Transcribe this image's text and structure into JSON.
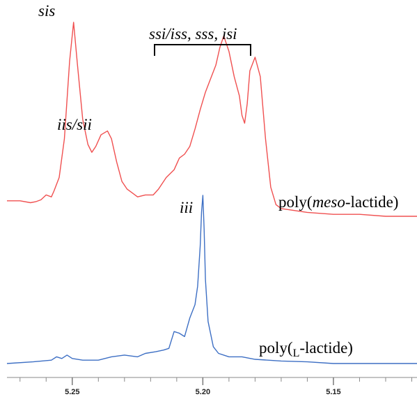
{
  "chart_data": {
    "type": "line",
    "title": "",
    "xlabel": "",
    "ylabel": "",
    "x_reversed": true,
    "xlim": [
      5.275,
      5.118
    ],
    "x_ticks": [
      5.25,
      5.2,
      5.15
    ],
    "x_tick_labels": [
      "5.25",
      "5.20",
      "5.15"
    ],
    "series": [
      {
        "color": "#f05050",
        "label_parts": [
          "poly(",
          "meso",
          "-lactide)"
        ],
        "points": [
          [
            5.275,
            0.08
          ],
          [
            5.27,
            0.08
          ],
          [
            5.266,
            0.07
          ],
          [
            5.264,
            0.075
          ],
          [
            5.262,
            0.085
          ],
          [
            5.26,
            0.11
          ],
          [
            5.258,
            0.1
          ],
          [
            5.257,
            0.13
          ],
          [
            5.255,
            0.2
          ],
          [
            5.253,
            0.4
          ],
          [
            5.251,
            0.8
          ],
          [
            5.2495,
            1.0
          ],
          [
            5.248,
            0.78
          ],
          [
            5.246,
            0.5
          ],
          [
            5.244,
            0.37
          ],
          [
            5.2425,
            0.33
          ],
          [
            5.241,
            0.36
          ],
          [
            5.239,
            0.42
          ],
          [
            5.2365,
            0.44
          ],
          [
            5.235,
            0.4
          ],
          [
            5.233,
            0.28
          ],
          [
            5.231,
            0.18
          ],
          [
            5.229,
            0.14
          ],
          [
            5.227,
            0.12
          ],
          [
            5.225,
            0.1
          ],
          [
            5.222,
            0.11
          ],
          [
            5.219,
            0.11
          ],
          [
            5.217,
            0.14
          ],
          [
            5.214,
            0.2
          ],
          [
            5.211,
            0.24
          ],
          [
            5.209,
            0.3
          ],
          [
            5.207,
            0.32
          ],
          [
            5.205,
            0.36
          ],
          [
            5.203,
            0.45
          ],
          [
            5.201,
            0.55
          ],
          [
            5.199,
            0.64
          ],
          [
            5.197,
            0.71
          ],
          [
            5.195,
            0.78
          ],
          [
            5.1935,
            0.87
          ],
          [
            5.192,
            0.93
          ],
          [
            5.19,
            0.85
          ],
          [
            5.188,
            0.72
          ],
          [
            5.186,
            0.62
          ],
          [
            5.185,
            0.52
          ],
          [
            5.184,
            0.48
          ],
          [
            5.183,
            0.58
          ],
          [
            5.182,
            0.75
          ],
          [
            5.18,
            0.82
          ],
          [
            5.178,
            0.72
          ],
          [
            5.176,
            0.4
          ],
          [
            5.174,
            0.15
          ],
          [
            5.172,
            0.06
          ],
          [
            5.17,
            0.04
          ],
          [
            5.165,
            0.03
          ],
          [
            5.16,
            0.02
          ],
          [
            5.15,
            0.01
          ],
          [
            5.14,
            0.01
          ],
          [
            5.13,
            0.0
          ],
          [
            5.118,
            0.0
          ]
        ]
      },
      {
        "color": "#3d6fc4",
        "label_parts": [
          "poly(",
          "L",
          "-lactide)"
        ],
        "points": [
          [
            5.275,
            0.0
          ],
          [
            5.265,
            0.01
          ],
          [
            5.258,
            0.02
          ],
          [
            5.256,
            0.04
          ],
          [
            5.254,
            0.03
          ],
          [
            5.252,
            0.05
          ],
          [
            5.25,
            0.03
          ],
          [
            5.246,
            0.02
          ],
          [
            5.24,
            0.02
          ],
          [
            5.235,
            0.04
          ],
          [
            5.23,
            0.05
          ],
          [
            5.225,
            0.04
          ],
          [
            5.222,
            0.06
          ],
          [
            5.218,
            0.07
          ],
          [
            5.215,
            0.08
          ],
          [
            5.213,
            0.09
          ],
          [
            5.211,
            0.19
          ],
          [
            5.209,
            0.18
          ],
          [
            5.207,
            0.16
          ],
          [
            5.205,
            0.27
          ],
          [
            5.203,
            0.35
          ],
          [
            5.202,
            0.46
          ],
          [
            5.201,
            0.7
          ],
          [
            5.2005,
            0.9
          ],
          [
            5.2,
            1.0
          ],
          [
            5.1995,
            0.8
          ],
          [
            5.199,
            0.5
          ],
          [
            5.198,
            0.25
          ],
          [
            5.196,
            0.1
          ],
          [
            5.194,
            0.06
          ],
          [
            5.19,
            0.04
          ],
          [
            5.185,
            0.04
          ],
          [
            5.18,
            0.025
          ],
          [
            5.17,
            0.015
          ],
          [
            5.16,
            0.01
          ],
          [
            5.15,
            0.0
          ],
          [
            5.14,
            0.0
          ],
          [
            5.13,
            0.0
          ],
          [
            5.118,
            0.0
          ]
        ]
      }
    ],
    "annotations": {
      "sis": "sis",
      "iis_sii": "iis/sii",
      "ssi_group": "ssi/iss, sss, isi",
      "iii": "iii"
    }
  }
}
